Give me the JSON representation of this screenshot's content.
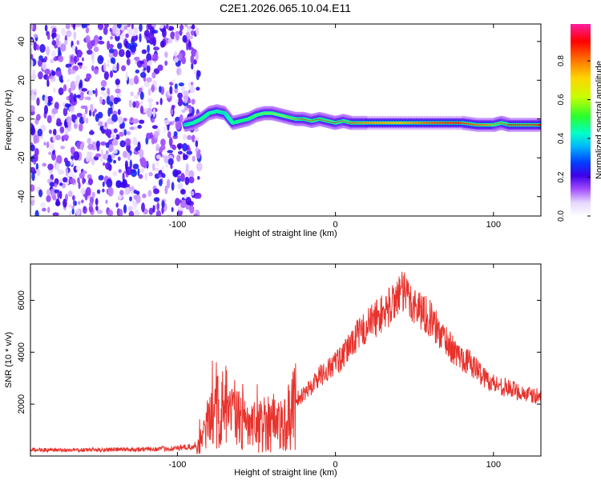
{
  "figure_title": "C2E1.2026.065.10.04.E11",
  "chart_data": [
    {
      "type": "heatmap",
      "title": "C2E1.2026.065.10.04.E11",
      "xlabel": "Height of straight line (km)",
      "ylabel": "Frequency (Hz)",
      "xlim": [
        -193,
        130
      ],
      "ylim": [
        -50,
        49
      ],
      "xticks": [
        -100,
        0,
        100
      ],
      "xtick_labels": [
        "-100",
        "0",
        "100"
      ],
      "yticks": [
        -40,
        -20,
        0,
        20,
        40
      ],
      "ytick_labels": [
        "-40",
        "-20",
        "0",
        "20",
        "40"
      ],
      "colorbar": {
        "label": "Normalized spectral amplitude",
        "range": [
          0,
          0.99
        ],
        "ticks": [
          0.0,
          0.2,
          0.4,
          0.6,
          0.8
        ],
        "tick_labels": [
          "0.0",
          "0.2",
          "0.4",
          "0.6",
          "0.8"
        ]
      },
      "noise_region": {
        "x_range": [
          -193,
          -89
        ],
        "level": 0.2
      },
      "signal_trace": {
        "x": [
          -95,
          -90,
          -85,
          -80,
          -75,
          -70,
          -65,
          -60,
          -55,
          -50,
          -45,
          -40,
          -35,
          -30,
          -25,
          -20,
          -15,
          -10,
          -5,
          0,
          5,
          10,
          20,
          40,
          60,
          80,
          90,
          100,
          105,
          110,
          120,
          130
        ],
        "freq": [
          -3,
          -2,
          0,
          3,
          4,
          3,
          -2,
          -1,
          0,
          2,
          3,
          3,
          2,
          1,
          0,
          0,
          -1,
          0,
          -1,
          -2,
          -1,
          -2,
          -2,
          -2,
          -2,
          -2,
          -3,
          -3,
          -2,
          -3,
          -3,
          -3
        ],
        "amplitude": [
          0.3,
          0.4,
          0.5,
          0.45,
          0.4,
          0.35,
          0.45,
          0.5,
          0.55,
          0.55,
          0.6,
          0.65,
          0.7,
          0.75,
          0.8,
          0.9,
          0.85,
          0.9,
          0.85,
          0.9,
          0.88,
          0.85,
          0.8,
          0.75,
          0.85,
          0.9,
          0.85,
          0.8,
          0.85,
          0.9,
          0.88,
          0.9
        ]
      }
    },
    {
      "type": "line",
      "title": "",
      "xlabel": "Height of straight line (km)",
      "ylabel": "SNR (10 * v/v)",
      "xlim": [
        -193,
        130
      ],
      "ylim": [
        0,
        7400
      ],
      "xticks": [
        -100,
        0,
        100
      ],
      "xtick_labels": [
        "-100",
        "0",
        "100"
      ],
      "yticks": [
        2000,
        4000,
        6000
      ],
      "ytick_labels": [
        "2000",
        "4000",
        "6000"
      ],
      "series": [
        {
          "name": "SNR",
          "color": "#e8322c",
          "x": [
            -193,
            -180,
            -160,
            -140,
            -120,
            -100,
            -90,
            -85,
            -80,
            -75,
            -70,
            -65,
            -60,
            -55,
            -50,
            -45,
            -40,
            -35,
            -30,
            -25,
            -20,
            -15,
            -10,
            -5,
            0,
            5,
            10,
            15,
            20,
            25,
            30,
            35,
            40,
            45,
            50,
            55,
            60,
            65,
            70,
            75,
            80,
            85,
            90,
            95,
            100,
            105,
            110,
            115,
            120,
            125,
            130
          ],
          "values": [
            250,
            220,
            230,
            250,
            260,
            300,
            350,
            600,
            1200,
            1700,
            1900,
            1600,
            1400,
            1100,
            1000,
            1300,
            1400,
            1200,
            1400,
            2200,
            2400,
            2700,
            3100,
            3300,
            3600,
            3800,
            4400,
            4700,
            5000,
            5300,
            5500,
            5800,
            6300,
            6200,
            5800,
            5600,
            5300,
            4800,
            4500,
            4000,
            3800,
            3600,
            3300,
            3000,
            2800,
            2700,
            2600,
            2500,
            2400,
            2300,
            2300
          ]
        }
      ]
    }
  ]
}
